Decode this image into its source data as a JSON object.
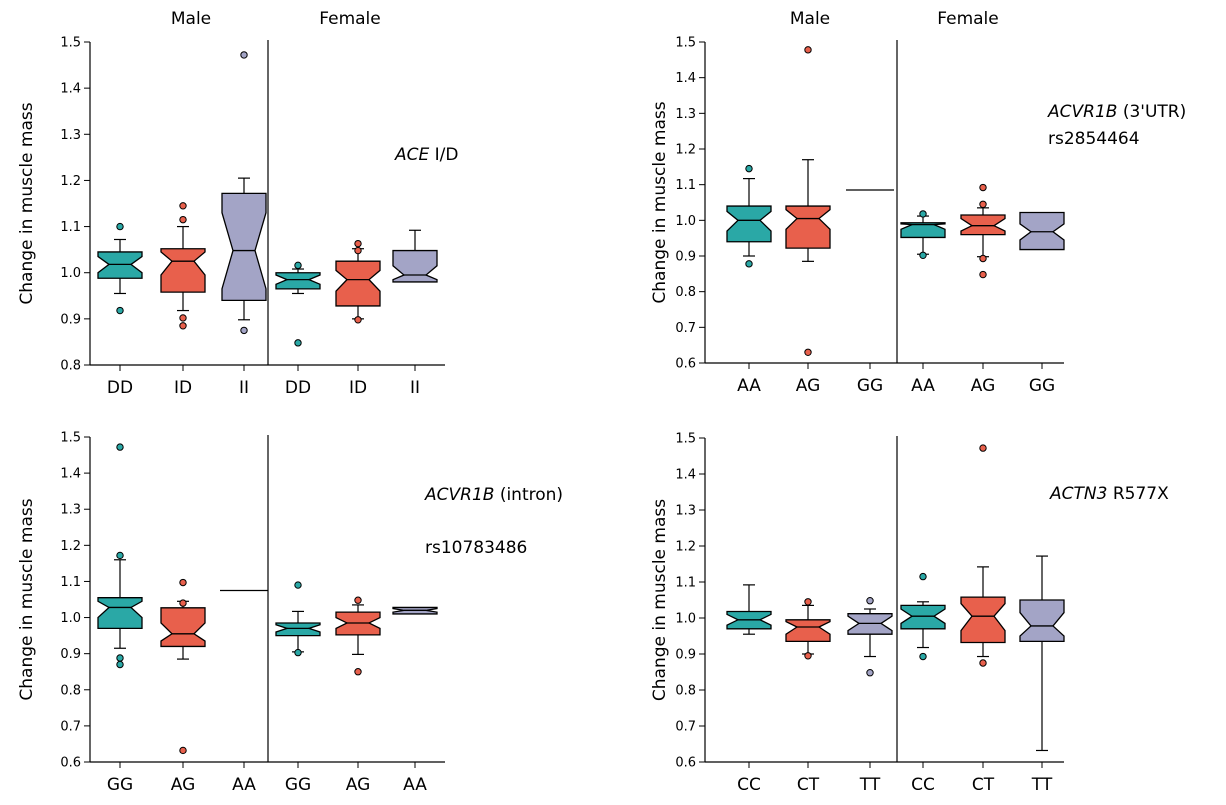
{
  "chart_data": [
    {
      "type": "boxplot",
      "ylabel": "Change in muscle mass",
      "ylim": [
        0.8,
        1.5
      ],
      "yticks": [
        "0.8",
        "0.9",
        "1.0",
        "1.1",
        "1.2",
        "1.3",
        "1.4",
        "1.5"
      ],
      "groups": [
        "Male",
        "Female"
      ],
      "annotation": [
        {
          "text": "ACE",
          "italic": true
        },
        {
          "text": " I/D",
          "italic": false
        }
      ],
      "annotation2": "",
      "boxes": [
        {
          "group": "Male",
          "label": "DD",
          "color": "#2aa8a6",
          "q1": 0.988,
          "median": 1.018,
          "q3": 1.045,
          "notch_low": 1.0,
          "notch_high": 1.035,
          "whisker_low": 0.955,
          "whisker_high": 1.072,
          "outliers": [
            1.1,
            0.918
          ]
        },
        {
          "group": "Male",
          "label": "ID",
          "color": "#e8604c",
          "q1": 0.958,
          "median": 1.025,
          "q3": 1.052,
          "notch_low": 0.995,
          "notch_high": 1.045,
          "whisker_low": 0.918,
          "whisker_high": 1.1,
          "outliers": [
            1.145,
            1.115,
            0.902,
            0.885
          ]
        },
        {
          "group": "Male",
          "label": "II",
          "color": "#a3a4c6",
          "q1": 0.94,
          "median": 1.048,
          "q3": 1.172,
          "notch_low": 0.965,
          "notch_high": 1.13,
          "whisker_low": 0.898,
          "whisker_high": 1.205,
          "outliers": [
            1.472,
            0.875
          ]
        },
        {
          "group": "Female",
          "label": "DD",
          "color": "#2aa8a6",
          "q1": 0.965,
          "median": 0.985,
          "q3": 1.0,
          "notch_low": 0.975,
          "notch_high": 0.995,
          "whisker_low": 0.955,
          "whisker_high": 1.008,
          "outliers": [
            1.016,
            0.848
          ]
        },
        {
          "group": "Female",
          "label": "ID",
          "color": "#e8604c",
          "q1": 0.928,
          "median": 0.985,
          "q3": 1.025,
          "notch_low": 0.96,
          "notch_high": 1.005,
          "whisker_low": 0.9,
          "whisker_high": 1.052,
          "outliers": [
            1.063,
            1.048,
            0.898
          ]
        },
        {
          "group": "Female",
          "label": "II",
          "color": "#a3a4c6",
          "q1": 0.98,
          "median": 0.995,
          "q3": 1.048,
          "notch_low": 0.985,
          "notch_high": 1.015,
          "whisker_low": 0.98,
          "whisker_high": 1.092,
          "outliers": []
        }
      ]
    },
    {
      "type": "boxplot",
      "ylabel": "Change in muscle mass",
      "ylim": [
        0.6,
        1.5
      ],
      "yticks": [
        "0.6",
        "0.7",
        "0.8",
        "0.9",
        "1.0",
        "1.1",
        "1.2",
        "1.3",
        "1.4",
        "1.5"
      ],
      "groups": [
        "Male",
        "Female"
      ],
      "annotation": [
        {
          "text": "ACVR1B",
          "italic": true
        },
        {
          "text": " (3'UTR)",
          "italic": false
        }
      ],
      "annotation2": "rs2854464",
      "boxes": [
        {
          "group": "Male",
          "label": "AA",
          "color": "#2aa8a6",
          "q1": 0.94,
          "median": 1.0,
          "q3": 1.04,
          "notch_low": 0.97,
          "notch_high": 1.025,
          "whisker_low": 0.9,
          "whisker_high": 1.117,
          "outliers": [
            1.145,
            0.878
          ]
        },
        {
          "group": "Male",
          "label": "AG",
          "color": "#e8604c",
          "q1": 0.922,
          "median": 1.005,
          "q3": 1.04,
          "notch_low": 0.975,
          "notch_high": 1.03,
          "whisker_low": 0.885,
          "whisker_high": 1.17,
          "outliers": [
            1.478,
            0.63
          ]
        },
        {
          "group": "Male",
          "label": "GG",
          "color": "#a3a4c6",
          "q1": 1.085,
          "median": 1.085,
          "q3": 1.085,
          "notch_low": 1.085,
          "notch_high": 1.085,
          "whisker_low": 1.085,
          "whisker_high": 1.085,
          "outliers": []
        },
        {
          "group": "Female",
          "label": "AA",
          "color": "#2aa8a6",
          "q1": 0.952,
          "median": 0.988,
          "q3": 0.993,
          "notch_low": 0.975,
          "notch_high": 0.99,
          "whisker_low": 0.905,
          "whisker_high": 1.012,
          "outliers": [
            1.018,
            0.902
          ]
        },
        {
          "group": "Female",
          "label": "AG",
          "color": "#e8604c",
          "q1": 0.96,
          "median": 0.985,
          "q3": 1.015,
          "notch_low": 0.97,
          "notch_high": 1.005,
          "whisker_low": 0.898,
          "whisker_high": 1.035,
          "outliers": [
            1.092,
            1.045,
            0.893,
            0.848
          ]
        },
        {
          "group": "Female",
          "label": "GG",
          "color": "#a3a4c6",
          "q1": 0.918,
          "median": 0.968,
          "q3": 1.022,
          "notch_low": 0.945,
          "notch_high": 0.99,
          "whisker_low": 0.918,
          "whisker_high": 1.022,
          "outliers": []
        }
      ]
    },
    {
      "type": "boxplot",
      "ylabel": "Change in muscle mass",
      "ylim": [
        0.6,
        1.5
      ],
      "yticks": [
        "0.6",
        "0.7",
        "0.8",
        "0.9",
        "1.0",
        "1.1",
        "1.2",
        "1.3",
        "1.4",
        "1.5"
      ],
      "groups": [],
      "annotation": [
        {
          "text": "ACVR1B",
          "italic": true
        },
        {
          "text": " (intron)",
          "italic": false
        }
      ],
      "annotation2": "rs10783486",
      "boxes": [
        {
          "group": "Male",
          "label": "GG",
          "color": "#2aa8a6",
          "q1": 0.97,
          "median": 1.028,
          "q3": 1.055,
          "notch_low": 1.0,
          "notch_high": 1.045,
          "whisker_low": 0.915,
          "whisker_high": 1.16,
          "outliers": [
            1.472,
            1.172,
            0.888,
            0.87
          ]
        },
        {
          "group": "Male",
          "label": "AG",
          "color": "#e8604c",
          "q1": 0.92,
          "median": 0.955,
          "q3": 1.027,
          "notch_low": 0.935,
          "notch_high": 0.985,
          "whisker_low": 0.885,
          "whisker_high": 1.045,
          "outliers": [
            1.097,
            1.04,
            0.632
          ]
        },
        {
          "group": "Male",
          "label": "AA",
          "color": "#a3a4c6",
          "q1": 1.075,
          "median": 1.075,
          "q3": 1.075,
          "notch_low": 1.075,
          "notch_high": 1.075,
          "whisker_low": 1.075,
          "whisker_high": 1.075,
          "outliers": []
        },
        {
          "group": "Female",
          "label": "GG",
          "color": "#2aa8a6",
          "q1": 0.95,
          "median": 0.97,
          "q3": 0.985,
          "notch_low": 0.96,
          "notch_high": 0.98,
          "whisker_low": 0.905,
          "whisker_high": 1.017,
          "outliers": [
            1.09,
            0.903
          ]
        },
        {
          "group": "Female",
          "label": "AG",
          "color": "#e8604c",
          "q1": 0.952,
          "median": 0.985,
          "q3": 1.015,
          "notch_low": 0.97,
          "notch_high": 1.0,
          "whisker_low": 0.898,
          "whisker_high": 1.035,
          "outliers": [
            1.048,
            0.85
          ]
        },
        {
          "group": "Female",
          "label": "AA",
          "color": "#a3a4c6",
          "q1": 1.01,
          "median": 1.02,
          "q3": 1.028,
          "notch_low": 1.015,
          "notch_high": 1.025,
          "whisker_low": 1.01,
          "whisker_high": 1.028,
          "outliers": []
        }
      ]
    },
    {
      "type": "boxplot",
      "ylabel": "Change in muscle mass",
      "ylim": [
        0.6,
        1.5
      ],
      "yticks": [
        "0.6",
        "0.7",
        "0.8",
        "0.9",
        "1.0",
        "1.1",
        "1.2",
        "1.3",
        "1.4",
        "1.5"
      ],
      "groups": [],
      "annotation": [
        {
          "text": "ACTN3",
          "italic": true
        },
        {
          "text": " R577X",
          "italic": false
        }
      ],
      "annotation2": "",
      "boxes": [
        {
          "group": "Male",
          "label": "CC",
          "color": "#2aa8a6",
          "q1": 0.97,
          "median": 0.995,
          "q3": 1.018,
          "notch_low": 0.98,
          "notch_high": 1.01,
          "whisker_low": 0.955,
          "whisker_high": 1.092,
          "outliers": []
        },
        {
          "group": "Male",
          "label": "CT",
          "color": "#e8604c",
          "q1": 0.935,
          "median": 0.975,
          "q3": 0.995,
          "notch_low": 0.955,
          "notch_high": 0.99,
          "whisker_low": 0.9,
          "whisker_high": 1.035,
          "outliers": [
            1.045,
            0.895
          ]
        },
        {
          "group": "Male",
          "label": "TT",
          "color": "#a3a4c6",
          "q1": 0.955,
          "median": 0.985,
          "q3": 1.012,
          "notch_low": 0.965,
          "notch_high": 1.005,
          "whisker_low": 0.893,
          "whisker_high": 1.025,
          "outliers": [
            1.048,
            0.848
          ]
        },
        {
          "group": "Female",
          "label": "CC",
          "color": "#2aa8a6",
          "q1": 0.97,
          "median": 1.005,
          "q3": 1.035,
          "notch_low": 0.985,
          "notch_high": 1.025,
          "whisker_low": 0.918,
          "whisker_high": 1.045,
          "outliers": [
            1.115,
            0.893
          ]
        },
        {
          "group": "Female",
          "label": "CT",
          "color": "#e8604c",
          "q1": 0.932,
          "median": 1.005,
          "q3": 1.058,
          "notch_low": 0.965,
          "notch_high": 1.04,
          "whisker_low": 0.893,
          "whisker_high": 1.142,
          "outliers": [
            1.472,
            0.875
          ]
        },
        {
          "group": "Female",
          "label": "TT",
          "color": "#a3a4c6",
          "q1": 0.935,
          "median": 0.978,
          "q3": 1.05,
          "notch_low": 0.95,
          "notch_high": 1.015,
          "whisker_low": 0.632,
          "whisker_high": 1.172,
          "outliers": []
        }
      ]
    }
  ]
}
